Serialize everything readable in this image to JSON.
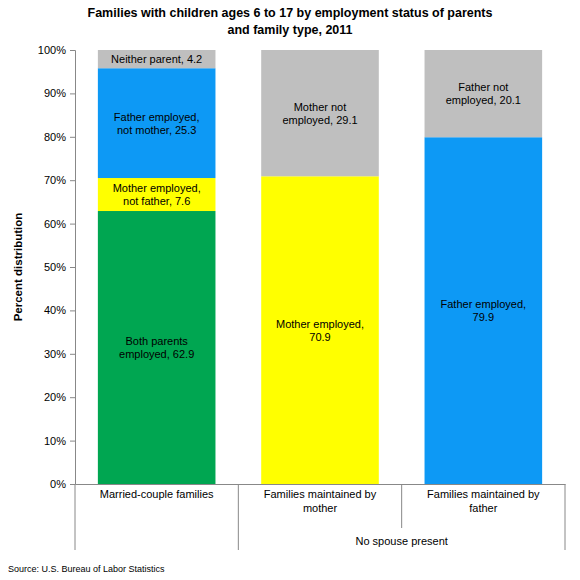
{
  "chart_data": {
    "type": "bar",
    "title": "Families with children ages 6 to 17 by employment status of parents and family type, 2011",
    "y_label": "Percent distribution",
    "source": "Source: U.S. Bureau of Labor Statistics",
    "annotations": [
      "No spouse present"
    ],
    "categories": [
      "Married-couple families",
      "Families maintained by mother",
      "Families maintained by father"
    ],
    "series": [
      {
        "color": "#00a651",
        "values": [
          62.9,
          null,
          null
        ],
        "value_labels": [
          "Both parents employed, 62.9",
          null,
          null
        ]
      },
      {
        "color": "#ffff00",
        "values": [
          7.6,
          null,
          null
        ],
        "value_labels": [
          "Mother employed, not father, 7.6",
          null,
          null
        ]
      },
      {
        "color": "#0d99f5",
        "values": [
          25.3,
          null,
          null
        ],
        "value_labels": [
          "Father employed, not mother, 25.3",
          null,
          null
        ]
      },
      {
        "color": "#bfbfbf",
        "values": [
          4.2,
          null,
          null
        ],
        "value_labels": [
          "Neither parent, 4.2",
          null,
          null
        ]
      },
      {
        "color": "#ffff00",
        "values": [
          null,
          70.9,
          null
        ],
        "value_labels": [
          null,
          "Mother employed, 70.9",
          null
        ]
      },
      {
        "color": "#bfbfbf",
        "values": [
          null,
          29.1,
          null
        ],
        "value_labels": [
          null,
          "Mother not employed, 29.1",
          null
        ]
      },
      {
        "color": "#0d99f5",
        "values": [
          null,
          null,
          79.9
        ],
        "value_labels": [
          null,
          null,
          "Father employed, 79.9"
        ]
      },
      {
        "color": "#bfbfbf",
        "values": [
          null,
          null,
          20.1
        ],
        "value_labels": [
          null,
          null,
          "Father not employed, 20.1"
        ]
      }
    ],
    "stacked": true,
    "data_labels": true,
    "grid": false,
    "ylim": [
      0,
      100
    ],
    "yticks": [
      {
        "value": 0,
        "label": "0%"
      },
      {
        "value": 10,
        "label": "10%"
      },
      {
        "value": 20,
        "label": "20%"
      },
      {
        "value": 30,
        "label": "30%"
      },
      {
        "value": 40,
        "label": "40%"
      },
      {
        "value": 50,
        "label": "50%"
      },
      {
        "value": 60,
        "label": "60%"
      },
      {
        "value": 70,
        "label": "70%"
      },
      {
        "value": 80,
        "label": "80%"
      },
      {
        "value": 90,
        "label": "90%"
      },
      {
        "value": 100,
        "label": "100%"
      }
    ]
  }
}
